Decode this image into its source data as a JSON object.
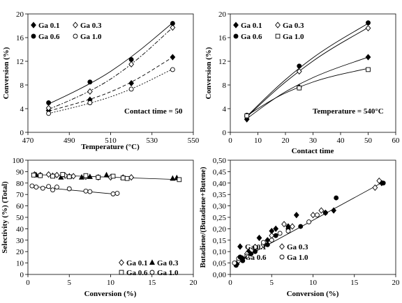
{
  "chart_data": [
    {
      "type": "scatter",
      "xlabel": "Temperature (°C)",
      "ylabel": "Conversion (%)",
      "xlim": [
        470,
        550
      ],
      "ylim": [
        0,
        20
      ],
      "xticks": [
        "470",
        "490",
        "510",
        "530",
        "550"
      ],
      "yticks": [
        "0",
        "4",
        "8",
        "12",
        "16",
        "20"
      ],
      "annotation": "Contact time = 50",
      "legend": [
        "Ga 0.1",
        "Ga 0.3",
        "Ga 0.6",
        "Ga 1.0"
      ],
      "series": [
        {
          "name": "Ga 0.1",
          "marker": "diamond-filled",
          "line": "dash",
          "points": [
            [
              480,
              3.7
            ],
            [
              500,
              5.5
            ],
            [
              520,
              8.3
            ],
            [
              540,
              12.7
            ]
          ],
          "fit": [
            [
              480,
              3.6
            ],
            [
              500,
              5.4
            ],
            [
              520,
              8.3
            ],
            [
              540,
              12.7
            ]
          ]
        },
        {
          "name": "Ga 0.3",
          "marker": "diamond-open",
          "line": "dashdot",
          "points": [
            [
              480,
              4.1
            ],
            [
              500,
              6.9
            ],
            [
              520,
              11.5
            ],
            [
              540,
              17.7
            ]
          ],
          "fit": [
            [
              480,
              3.9
            ],
            [
              500,
              6.7
            ],
            [
              520,
              11.3
            ],
            [
              540,
              17.7
            ]
          ]
        },
        {
          "name": "Ga 0.6",
          "marker": "circle-filled",
          "line": "solid",
          "points": [
            [
              480,
              5.0
            ],
            [
              500,
              8.5
            ],
            [
              520,
              12.3
            ],
            [
              540,
              18.4
            ]
          ],
          "fit": [
            [
              480,
              4.8
            ],
            [
              500,
              8.0
            ],
            [
              520,
              12.6
            ],
            [
              540,
              18.5
            ]
          ]
        },
        {
          "name": "Ga 1.0",
          "marker": "circle-open",
          "line": "dot",
          "points": [
            [
              480,
              3.2
            ],
            [
              500,
              5.0
            ],
            [
              520,
              7.3
            ],
            [
              540,
              10.6
            ]
          ],
          "fit": [
            [
              480,
              3.2
            ],
            [
              500,
              4.8
            ],
            [
              520,
              7.2
            ],
            [
              540,
              10.7
            ]
          ]
        }
      ]
    },
    {
      "type": "scatter",
      "xlabel": "Contact time",
      "ylabel": "Conversion (%)",
      "xlim": [
        0,
        60
      ],
      "ylim": [
        0,
        20
      ],
      "xticks": [
        "0",
        "10",
        "20",
        "30",
        "40",
        "50",
        "60"
      ],
      "yticks": [
        "0",
        "4",
        "8",
        "12",
        "16",
        "20"
      ],
      "annotation": "Temperature = 540°C",
      "legend": [
        "Ga 0.1",
        "Ga 0.3",
        "Ga 0.6",
        "Ga  1.0"
      ],
      "series": [
        {
          "name": "Ga 0.1",
          "marker": "diamond-filled",
          "line": "solid",
          "points": [
            [
              6,
              2.2
            ],
            [
              25,
              7.6
            ],
            [
              50,
              12.7
            ]
          ],
          "fit": [
            [
              6,
              2.3
            ],
            [
              15,
              5.5
            ],
            [
              25,
              8.2
            ],
            [
              35,
              10.3
            ],
            [
              50,
              12.7
            ]
          ]
        },
        {
          "name": "Ga 0.3",
          "marker": "diamond-open",
          "line": "solid",
          "points": [
            [
              6,
              2.7
            ],
            [
              25,
              10.3
            ],
            [
              50,
              17.6
            ]
          ],
          "fit": [
            [
              6,
              2.6
            ],
            [
              15,
              6.6
            ],
            [
              25,
              10.4
            ],
            [
              35,
              13.7
            ],
            [
              50,
              17.7
            ]
          ]
        },
        {
          "name": "Ga 0.6",
          "marker": "circle-filled",
          "line": "solid",
          "points": [
            [
              6,
              2.9
            ],
            [
              25,
              11.2
            ],
            [
              50,
              18.5
            ]
          ],
          "fit": [
            [
              6,
              2.7
            ],
            [
              15,
              6.9
            ],
            [
              25,
              10.9
            ],
            [
              35,
              14.3
            ],
            [
              50,
              18.4
            ]
          ]
        },
        {
          "name": "Ga  1.0",
          "marker": "square-open",
          "line": "solid",
          "points": [
            [
              6,
              2.8
            ],
            [
              25,
              7.5
            ],
            [
              50,
              10.6
            ]
          ],
          "fit": [
            [
              6,
              2.8
            ],
            [
              15,
              5.6
            ],
            [
              25,
              7.7
            ],
            [
              35,
              9.3
            ],
            [
              50,
              10.8
            ]
          ]
        }
      ]
    },
    {
      "type": "scatter",
      "xlabel": "Conversion (%)",
      "ylabel": "Selectivity (%) (Total)",
      "xlim": [
        0,
        20
      ],
      "ylim": [
        0,
        100
      ],
      "xticks": [
        "0",
        "5",
        "10",
        "15",
        "20"
      ],
      "yticks": [
        "0",
        "10",
        "20",
        "30",
        "40",
        "50",
        "60",
        "70",
        "80",
        "90",
        "100"
      ],
      "legend": [
        "Ga 0.1",
        "Ga 0.3",
        "Ga 0.6",
        "Ga 1.0"
      ],
      "series": [
        {
          "name": "Ga 0.1",
          "marker": "diamond-open",
          "points": [
            [
              0.8,
              87.5
            ],
            [
              1.5,
              87
            ],
            [
              2.5,
              87.5
            ],
            [
              3.5,
              87
            ],
            [
              4.5,
              86.5
            ],
            [
              5.5,
              86
            ],
            [
              7,
              85.5
            ],
            [
              8.5,
              85
            ],
            [
              10,
              85
            ],
            [
              12.5,
              85
            ]
          ]
        },
        {
          "name": "Ga 0.3",
          "marker": "triangle-filled",
          "points": [
            [
              1,
              87
            ],
            [
              3,
              86.5
            ],
            [
              4,
              85
            ],
            [
              5,
              86
            ],
            [
              6.5,
              85
            ],
            [
              7.5,
              85.5
            ],
            [
              9.5,
              87
            ],
            [
              11.5,
              85
            ],
            [
              17.5,
              84
            ],
            [
              18,
              84.5
            ]
          ]
        },
        {
          "name": "Ga 0.6",
          "marker": "square-open",
          "points": [
            [
              0.7,
              87
            ],
            [
              1.5,
              86.5
            ],
            [
              3,
              86
            ],
            [
              4.2,
              87.5
            ],
            [
              5,
              85.5
            ],
            [
              7,
              86.5
            ],
            [
              8.5,
              85
            ],
            [
              10.3,
              86
            ],
            [
              11.5,
              84.5
            ],
            [
              12,
              84
            ],
            [
              18.3,
              83
            ]
          ]
        },
        {
          "name": "Ga 1.0",
          "marker": "circle-open",
          "points": [
            [
              0.5,
              77.5
            ],
            [
              1,
              76.5
            ],
            [
              1.8,
              75.5
            ],
            [
              2.5,
              77
            ],
            [
              3,
              74
            ],
            [
              3.5,
              76.5
            ],
            [
              5,
              75
            ],
            [
              7,
              73
            ],
            [
              7.5,
              72.5
            ],
            [
              10.3,
              70.5
            ],
            [
              10.8,
              71
            ]
          ]
        }
      ],
      "trend_lines": [
        {
          "from": [
            0.5,
            87.5
          ],
          "to": [
            18.5,
            83
          ]
        },
        {
          "from": [
            0.5,
            77
          ],
          "to": [
            11,
            70
          ]
        }
      ]
    },
    {
      "type": "scatter",
      "xlabel": "Conversion (%)",
      "ylabel": "Butadiene/(Butadiene+Butene)",
      "xlim": [
        0,
        20
      ],
      "ylim": [
        0,
        0.5
      ],
      "xticks": [
        "0",
        "5",
        "10",
        "15",
        "20"
      ],
      "yticks": [
        "0,00",
        "0,05",
        "0,10",
        "0,15",
        "0,20",
        "0,25",
        "0,30",
        "0,35",
        "0,40",
        "0,45",
        "0,50"
      ],
      "legend": [
        "Ga 0.1",
        "Ga 0.3",
        "Ga 0.6",
        "Ga 1.0"
      ],
      "series": [
        {
          "name": "Ga 0.1",
          "marker": "diamond-filled",
          "points": [
            [
              0.8,
              0.045
            ],
            [
              1.5,
              0.07
            ],
            [
              2.2,
              0.1
            ],
            [
              3,
              0.12
            ],
            [
              3.5,
              0.16
            ],
            [
              4.5,
              0.15
            ],
            [
              5,
              0.19
            ],
            [
              5.5,
              0.2
            ],
            [
              7,
              0.21
            ],
            [
              8,
              0.26
            ],
            [
              11.5,
              0.27
            ],
            [
              12.5,
              0.28
            ],
            [
              18.3,
              0.4
            ]
          ]
        },
        {
          "name": "Ga 0.3",
          "marker": "diamond-open",
          "points": [
            [
              1,
              0.06
            ],
            [
              2,
              0.09
            ],
            [
              3,
              0.11
            ],
            [
              4,
              0.13
            ],
            [
              5,
              0.17
            ],
            [
              6.5,
              0.22
            ],
            [
              7.5,
              0.21
            ],
            [
              10,
              0.26
            ],
            [
              11,
              0.28
            ],
            [
              17.5,
              0.38
            ],
            [
              18,
              0.41
            ]
          ]
        },
        {
          "name": "Ga 0.6",
          "marker": "circle-filled",
          "points": [
            [
              0.7,
              0.04
            ],
            [
              1.5,
              0.06
            ],
            [
              2.5,
              0.09
            ],
            [
              3,
              0.1
            ],
            [
              4.5,
              0.13
            ],
            [
              5.5,
              0.17
            ],
            [
              7,
              0.2
            ],
            [
              8.5,
              0.21
            ],
            [
              11.5,
              0.27
            ],
            [
              12.8,
              0.335
            ],
            [
              18.5,
              0.4
            ]
          ]
        },
        {
          "name": "Ga 1.0",
          "marker": "circle-open",
          "points": [
            [
              0.5,
              0.05
            ],
            [
              1,
              0.07
            ],
            [
              2,
              0.08
            ],
            [
              3,
              0.12
            ],
            [
              4,
              0.14
            ],
            [
              5,
              0.15
            ],
            [
              6,
              0.18
            ],
            [
              7,
              0.19
            ],
            [
              9.5,
              0.23
            ],
            [
              10.5,
              0.26
            ]
          ]
        }
      ],
      "trend_lines": [
        {
          "from": [
            0.5,
            0.05
          ],
          "to": [
            18.5,
            0.405
          ]
        }
      ]
    }
  ]
}
